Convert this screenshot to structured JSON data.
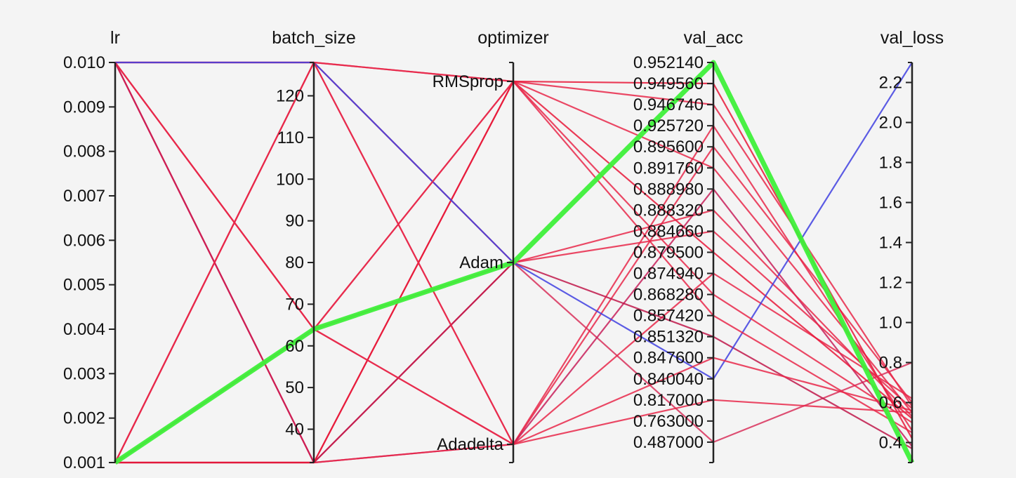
{
  "chart_data": {
    "type": "parallel_coordinates",
    "axes": [
      {
        "name": "lr",
        "kind": "linear",
        "range": [
          0.001,
          0.01
        ],
        "ticks": [
          "0.001",
          "0.002",
          "0.003",
          "0.004",
          "0.005",
          "0.006",
          "0.007",
          "0.008",
          "0.009",
          "0.010"
        ]
      },
      {
        "name": "batch_size",
        "kind": "linear",
        "range": [
          32,
          128
        ],
        "ticks": [
          "40",
          "50",
          "60",
          "70",
          "80",
          "90",
          "100",
          "110",
          "120"
        ]
      },
      {
        "name": "optimizer",
        "kind": "categorical",
        "categories": [
          "RMSprop",
          "Adam",
          "Adadelta"
        ]
      },
      {
        "name": "val_acc",
        "kind": "ordinal",
        "ticks": [
          "0.952140",
          "0.949560",
          "0.946740",
          "0.925720",
          "0.895600",
          "0.891760",
          "0.888980",
          "0.888320",
          "0.884660",
          "0.879500",
          "0.874940",
          "0.868280",
          "0.857420",
          "0.851320",
          "0.847600",
          "0.840040",
          "0.817000",
          "0.763000",
          "0.487000"
        ],
        "range_bottom_label": ""
      },
      {
        "name": "val_loss",
        "kind": "linear",
        "range": [
          0.3,
          2.3
        ],
        "ticks": [
          "0.4",
          "0.6",
          "0.8",
          "1.0",
          "1.2",
          "1.4",
          "1.6",
          "1.8",
          "2.0",
          "2.2"
        ]
      }
    ],
    "colors": {
      "normal": "#e8284a",
      "low": "#4040e0",
      "best": "#3ef03a",
      "axis": "#222222",
      "background": "#f4f4f4"
    },
    "records": [
      {
        "lr": 0.001,
        "batch_size": 64,
        "optimizer": "Adam",
        "val_acc": "0.952140",
        "val_loss": 0.3,
        "color": "#3ef03a",
        "best": true
      },
      {
        "lr": 0.01,
        "batch_size": 128,
        "optimizer": "RMSprop",
        "val_acc": "0.946740",
        "val_loss": 0.58,
        "color": "#e8284a"
      },
      {
        "lr": 0.01,
        "batch_size": 128,
        "optimizer": "Adadelta",
        "val_acc": "0.925720",
        "val_loss": 0.46,
        "color": "#e8284a"
      },
      {
        "lr": 0.01,
        "batch_size": 32,
        "optimizer": "Adam",
        "val_acc": "0.487000",
        "val_loss": 0.8,
        "color": "#d8305a"
      },
      {
        "lr": 0.01,
        "batch_size": 64,
        "optimizer": "Adadelta",
        "val_acc": "0.895600",
        "val_loss": 0.6,
        "color": "#e8284a"
      },
      {
        "lr": 0.01,
        "batch_size": 64,
        "optimizer": "RMSprop",
        "val_acc": "0.891760",
        "val_loss": 0.55,
        "color": "#e8284a"
      },
      {
        "lr": 0.01,
        "batch_size": 32,
        "optimizer": "RMSprop",
        "val_acc": "0.949560",
        "val_loss": 0.42,
        "color": "#e81838"
      },
      {
        "lr": 0.01,
        "batch_size": 32,
        "optimizer": "Adadelta",
        "val_acc": "0.888980",
        "val_loss": 0.38,
        "color": "#c8205a"
      },
      {
        "lr": 0.001,
        "batch_size": 128,
        "optimizer": "Adam",
        "val_acc": "0.884660",
        "val_loss": 0.57,
        "color": "#e8284a"
      },
      {
        "lr": 0.001,
        "batch_size": 32,
        "optimizer": "Adadelta",
        "val_acc": "0.874940",
        "val_loss": 0.62,
        "color": "#e8284a"
      },
      {
        "lr": 0.001,
        "batch_size": 32,
        "optimizer": "Adam",
        "val_acc": "0.851320",
        "val_loss": 0.37,
        "color": "#c0184a"
      },
      {
        "lr": 0.001,
        "batch_size": 32,
        "optimizer": "RMSprop",
        "val_acc": "0.879500",
        "val_loss": 0.52,
        "color": "#e81838"
      },
      {
        "lr": 0.01,
        "batch_size": 128,
        "optimizer": "Adam",
        "val_acc": "0.840040",
        "val_loss": 2.3,
        "color": "#4040e0"
      },
      {
        "lr": 0.001,
        "batch_size": 64,
        "optimizer": "RMSprop",
        "val_acc": "0.868280",
        "val_loss": 0.5,
        "color": "#e8284a"
      },
      {
        "lr": 0.001,
        "batch_size": 128,
        "optimizer": "RMSprop",
        "val_acc": "0.857420",
        "val_loss": 0.45,
        "color": "#e8284a"
      },
      {
        "lr": 0.001,
        "batch_size": 128,
        "optimizer": "Adadelta",
        "val_acc": "0.817000",
        "val_loss": 0.55,
        "color": "#e8284a"
      },
      {
        "lr": 0.001,
        "batch_size": 64,
        "optimizer": "Adadelta",
        "val_acc": "0.847600",
        "val_loss": 0.56,
        "color": "#e8284a"
      },
      {
        "lr": 0.01,
        "batch_size": 64,
        "optimizer": "Adam",
        "val_acc": "0.888320",
        "val_loss": 0.53,
        "color": "#e8284a"
      }
    ]
  }
}
